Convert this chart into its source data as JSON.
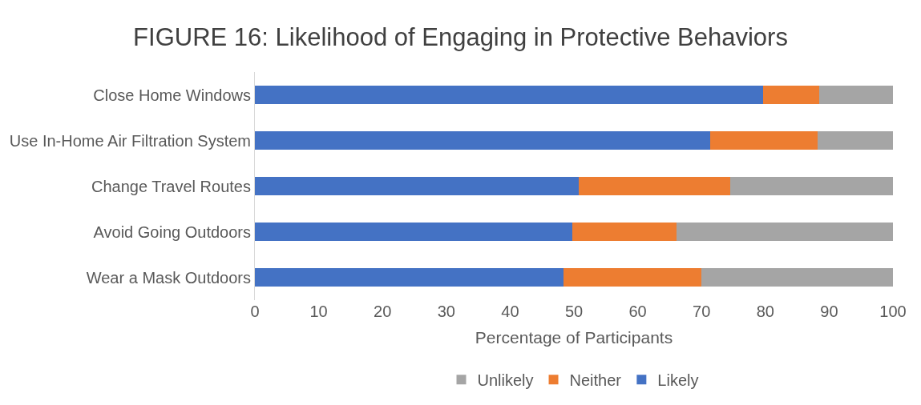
{
  "chart_data": {
    "type": "bar",
    "orientation": "horizontal",
    "stacked": true,
    "title": "FIGURE 16: Likelihood of Engaging in Protective Behaviors",
    "xlabel": "Percentage of Participants",
    "categories": [
      "Close Home Windows",
      "Use In-Home Air Filtration System",
      "Change Travel Routes",
      "Avoid Going Outdoors",
      "Wear a Mask Outdoors"
    ],
    "series": [
      {
        "name": "Likely",
        "color": "#4472c4",
        "values": [
          79.6,
          71.3,
          50.8,
          49.7,
          48.4
        ]
      },
      {
        "name": "Neither",
        "color": "#ed7d31",
        "values": [
          8.9,
          16.9,
          23.7,
          16.4,
          21.6
        ]
      },
      {
        "name": "Unlikely",
        "color": "#a5a5a5",
        "values": [
          11.5,
          11.8,
          25.5,
          33.9,
          30.0
        ]
      }
    ],
    "xlim": [
      0,
      100
    ],
    "xticks": [
      0,
      10,
      20,
      30,
      40,
      50,
      60,
      70,
      80,
      90,
      100
    ],
    "grid": false,
    "legend": "bottom"
  }
}
